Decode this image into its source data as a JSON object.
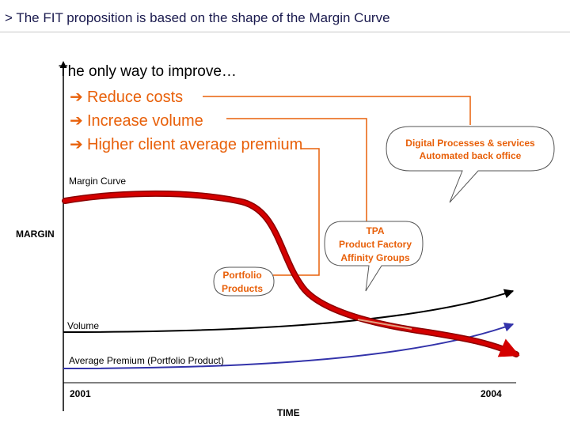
{
  "slide": {
    "title": "> The FIT proposition is based on the shape of the Margin Curve"
  },
  "diagram": {
    "heading": "The only way to improve…",
    "bullets": [
      "Reduce costs",
      "Increase volume",
      "Higher client average premium"
    ],
    "arrow_glyph": "➔",
    "callouts": {
      "digital": [
        "Digital Processes & services",
        "Automated back office"
      ],
      "tpa": [
        "TPA",
        "Product Factory",
        "Affinity Groups"
      ],
      "portfolio": [
        "Portfolio",
        "Products"
      ]
    },
    "curve_labels": {
      "margin_curve": "Margin Curve",
      "margin": "MARGIN",
      "volume": "Volume",
      "average_premium": "Average Premium (Portfolio Product)"
    },
    "axis": {
      "start": "2001",
      "end": "2004",
      "time": "TIME"
    },
    "colors": {
      "bullet_text": "#e8600a",
      "margin_curve": "#d40000",
      "volume_curve": "#000000",
      "premium_curve": "#3333aa",
      "connector": "#e8600a"
    }
  }
}
